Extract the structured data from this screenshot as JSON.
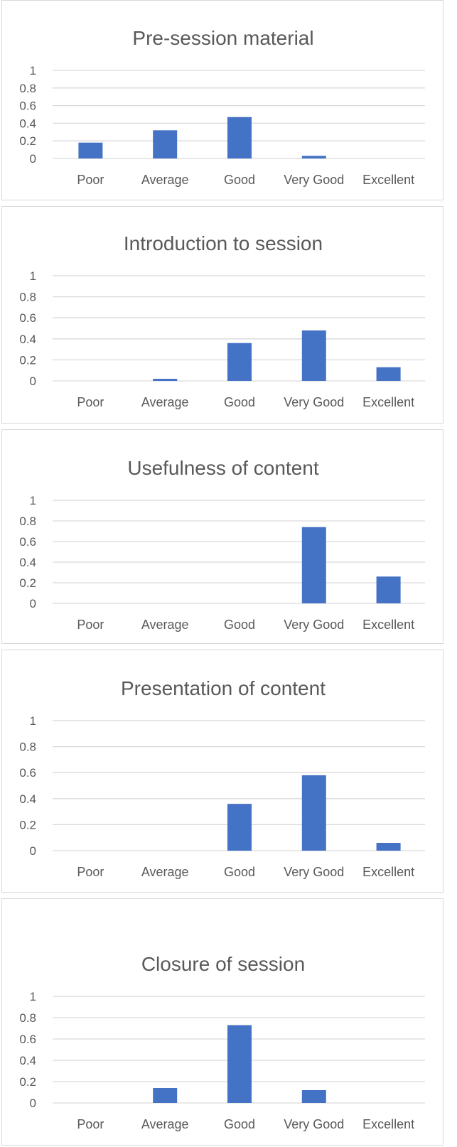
{
  "chart_data": [
    {
      "type": "bar",
      "title": "Pre-session material",
      "categories": [
        "Poor",
        "Average",
        "Good",
        "Very Good",
        "Excellent"
      ],
      "values": [
        0.18,
        0.32,
        0.47,
        0.03,
        0
      ],
      "ylim": [
        0,
        1
      ],
      "yticks": [
        "0",
        "0.2",
        "0.4",
        "0.6",
        "0.8",
        "1"
      ],
      "grid": true,
      "color": "#4472c4"
    },
    {
      "type": "bar",
      "title": "Introduction to session",
      "categories": [
        "Poor",
        "Average",
        "Good",
        "Very Good",
        "Excellent"
      ],
      "values": [
        0,
        0.02,
        0.36,
        0.48,
        0.13
      ],
      "ylim": [
        0,
        1
      ],
      "yticks": [
        "0",
        "0.2",
        "0.4",
        "0.6",
        "0.8",
        "1"
      ],
      "grid": true,
      "color": "#4472c4"
    },
    {
      "type": "bar",
      "title": "Usefulness of content",
      "categories": [
        "Poor",
        "Average",
        "Good",
        "Very Good",
        "Excellent"
      ],
      "values": [
        0,
        0,
        0,
        0.74,
        0.26
      ],
      "ylim": [
        0,
        1
      ],
      "yticks": [
        "0",
        "0.2",
        "0.4",
        "0.6",
        "0.8",
        "1"
      ],
      "grid": true,
      "color": "#4472c4"
    },
    {
      "type": "bar",
      "title": "Presentation of content",
      "categories": [
        "Poor",
        "Average",
        "Good",
        "Very Good",
        "Excellent"
      ],
      "values": [
        0,
        0,
        0.36,
        0.58,
        0.06
      ],
      "ylim": [
        0,
        1
      ],
      "yticks": [
        "0",
        "0.2",
        "0.4",
        "0.6",
        "0.8",
        "1"
      ],
      "grid": true,
      "color": "#4472c4"
    },
    {
      "type": "bar",
      "title": "Closure of session",
      "categories": [
        "Poor",
        "Average",
        "Good",
        "Very Good",
        "Excellent"
      ],
      "values": [
        0,
        0.14,
        0.73,
        0.12,
        0
      ],
      "ylim": [
        0,
        1
      ],
      "yticks": [
        "0",
        "0.2",
        "0.4",
        "0.6",
        "0.8",
        "1"
      ],
      "grid": true,
      "color": "#4472c4"
    }
  ]
}
